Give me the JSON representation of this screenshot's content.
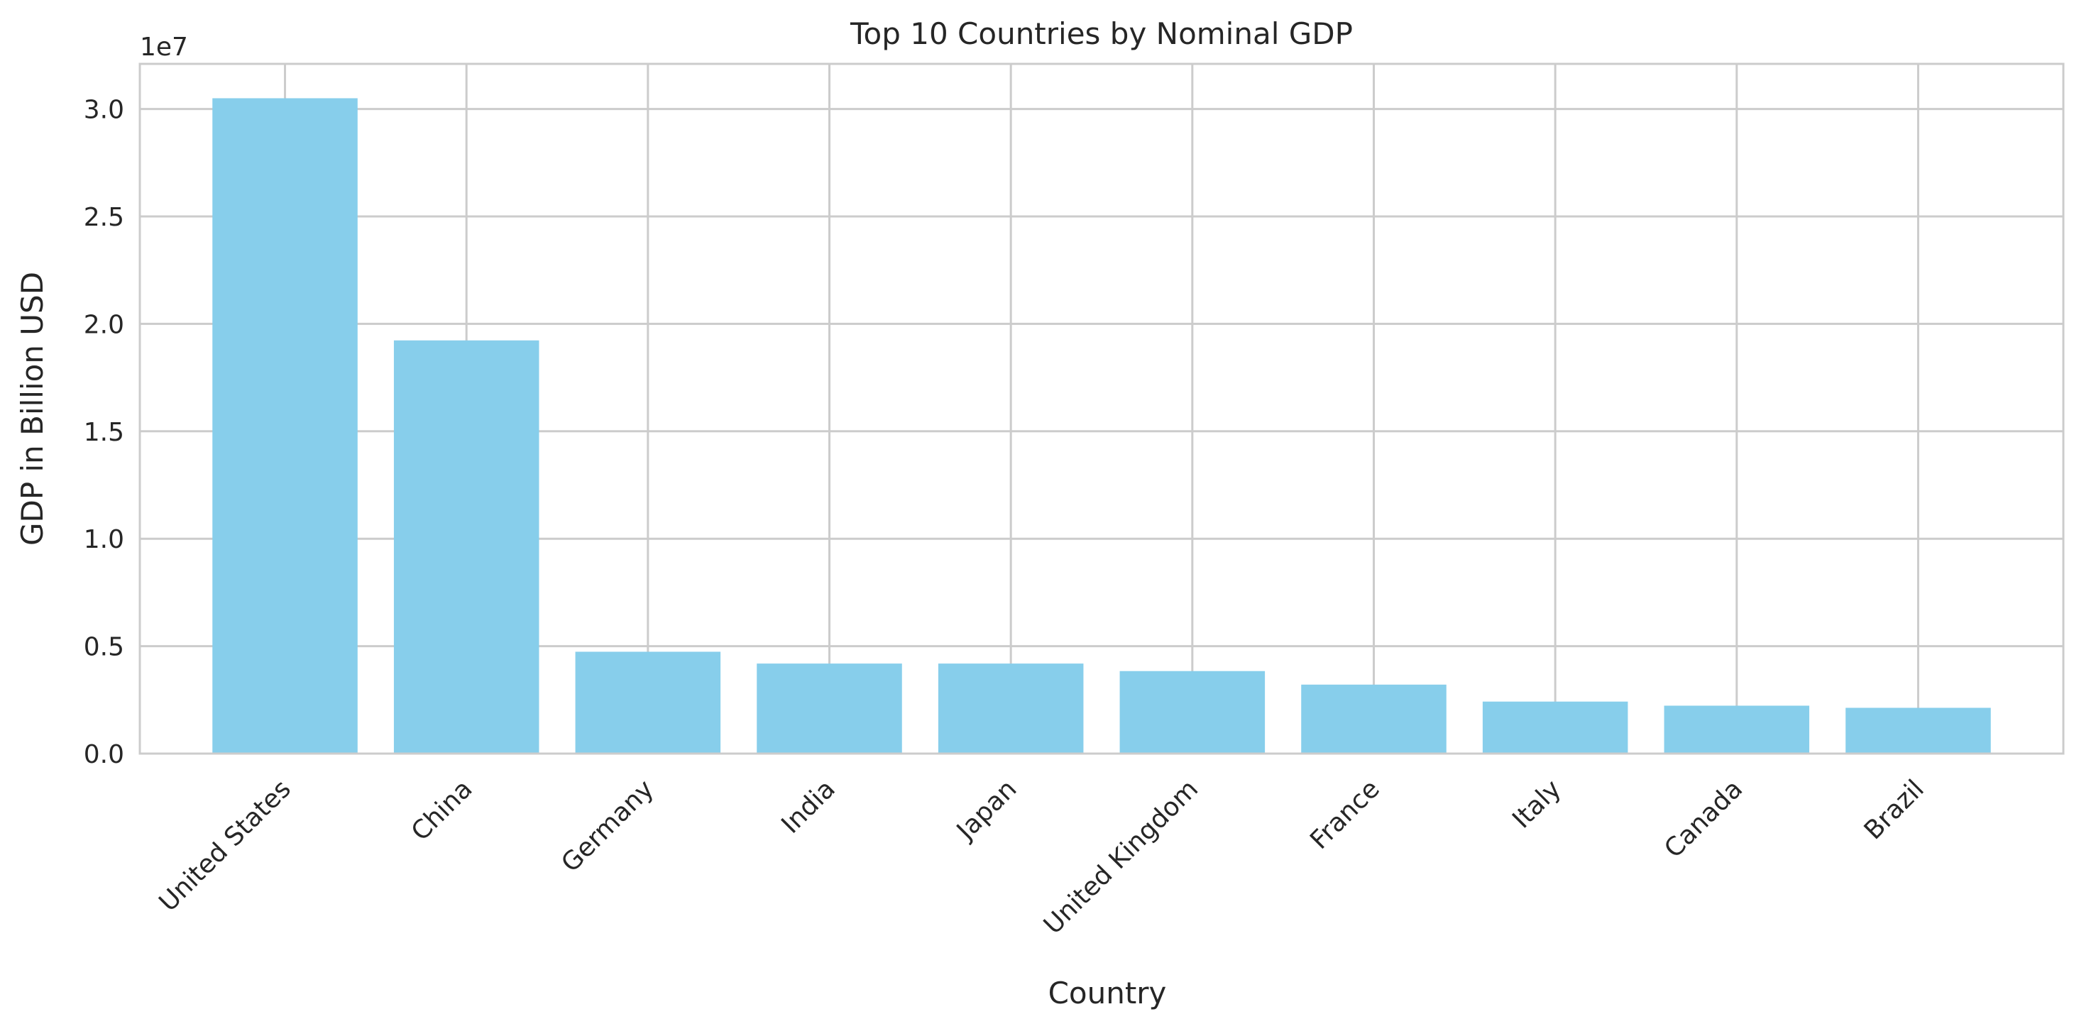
{
  "chart_data": {
    "type": "bar",
    "title": "Top 10 Countries by Nominal GDP",
    "xlabel": "Country",
    "ylabel": "GDP in Billion USD",
    "y_offset_text": "1e7",
    "y_scale_factor": 10000000,
    "categories": [
      "United States",
      "China",
      "Germany",
      "India",
      "Japan",
      "United Kingdom",
      "France",
      "Italy",
      "Canada",
      "Brazil"
    ],
    "values": [
      30500000,
      19230000,
      4740000,
      4190000,
      4190000,
      3840000,
      3210000,
      2420000,
      2230000,
      2130000
    ],
    "ylim": [
      0,
      32100000
    ],
    "yticks": [
      0,
      5000000,
      10000000,
      15000000,
      20000000,
      25000000,
      30000000
    ],
    "ytick_labels": [
      "0.0",
      "0.5",
      "1.0",
      "1.5",
      "2.0",
      "2.5",
      "3.0"
    ],
    "xtick_rotation": 45,
    "grid": true,
    "legend": "none",
    "colors": {
      "bar": "#87ceeb",
      "grid": "#cccccc",
      "spine": "#cccccc",
      "text": "#262626",
      "background": "#ffffff"
    }
  }
}
